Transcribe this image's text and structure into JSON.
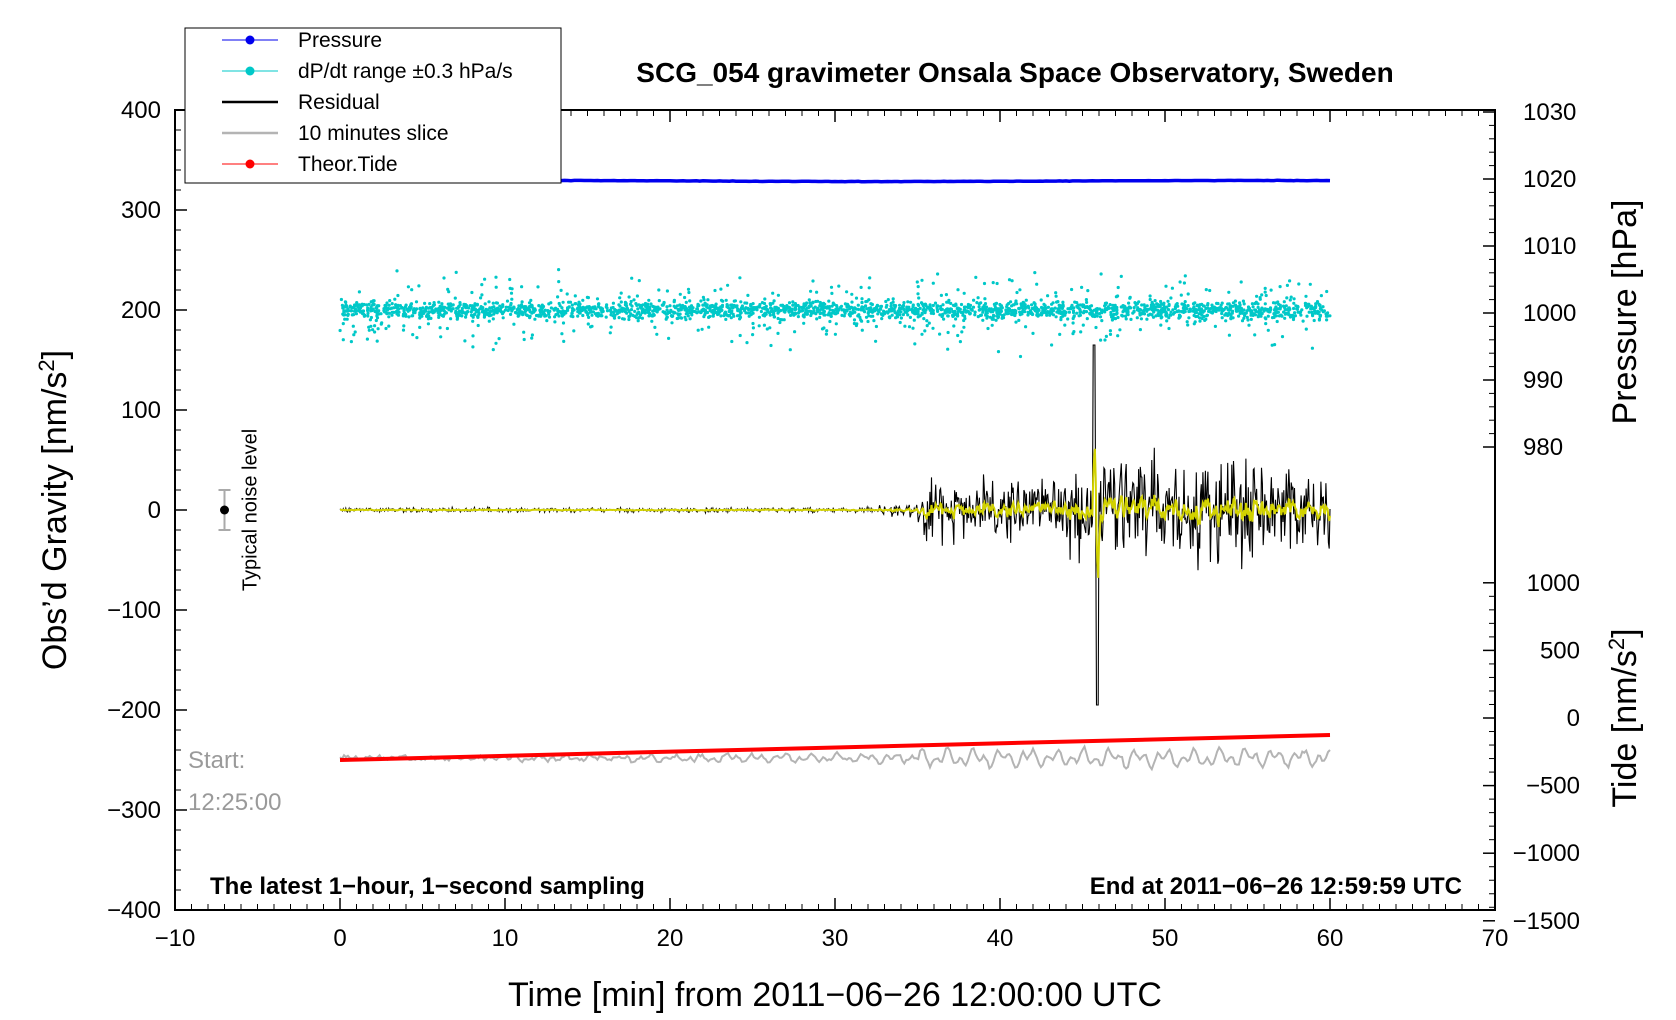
{
  "chart_data": {
    "type": "line",
    "title": "SCG_054 gravimeter Onsala Space Observatory, Sweden",
    "xlabel": "Time [min] from 2011−06−26 12:00:00 UTC",
    "ylabel": "Obs’d Gravity [nm/s²]",
    "ylabel_main": "Obs’d Gravity [nm/s",
    "ylabel_sup": "2",
    "ylabel_end": "]",
    "xlim": [
      -10,
      70
    ],
    "ylim": [
      -400,
      400
    ],
    "x_ticks": [
      -10,
      0,
      10,
      20,
      30,
      40,
      50,
      60,
      70
    ],
    "x_tick_labels": [
      "−10",
      "0",
      "10",
      "20",
      "30",
      "40",
      "50",
      "60",
      "70"
    ],
    "y_ticks": [
      -400,
      -300,
      -200,
      -100,
      0,
      100,
      200,
      300,
      400
    ],
    "y_tick_labels": [
      "−400",
      "−300",
      "−200",
      "−100",
      "0",
      "100",
      "200",
      "300",
      "400"
    ],
    "pressure_axis": {
      "label_main": "Pressure [hPa]",
      "ticks": [
        980,
        990,
        1000,
        1010,
        1020,
        1030
      ],
      "tick_labels": [
        "980",
        "990",
        "1000",
        "1010",
        "1020",
        "1030"
      ]
    },
    "tide_axis": {
      "label_main": "Tide [nm/s",
      "label_sup": "2",
      "label_end": "]",
      "ticks": [
        -1500,
        -1000,
        -500,
        0,
        500,
        1000
      ],
      "tick_labels": [
        "−1500",
        "−1000",
        "−500",
        "0",
        "500",
        "1000"
      ]
    },
    "legend": {
      "placement": "top-left",
      "entries": [
        {
          "label": "Pressure",
          "color": "#0000ee",
          "marker": "dot"
        },
        {
          "label": "dP/dt range ±0.3 hPa/s",
          "color": "#00c8c8",
          "marker": "dot"
        },
        {
          "label": "Residual",
          "color": "#000000",
          "marker": "line"
        },
        {
          "label": "10 minutes slice",
          "color": "#b4b4b4",
          "marker": "line"
        },
        {
          "label": "Theor.Tide",
          "color": "#ff0000",
          "marker": "dot"
        }
      ]
    },
    "series": [
      {
        "name": "Pressure",
        "unit": "hPa",
        "x_range": [
          0,
          60
        ],
        "values_approx": [
          1019.7,
          1019.7,
          1019.7
        ],
        "note": "nearly flat around 1019.7 hPa"
      },
      {
        "name": "dP/dt range ±0.3 hPa/s",
        "unit": "nm/s² (plot offset)",
        "x_range": [
          0,
          60
        ],
        "center": 200,
        "spread": 25
      },
      {
        "name": "Residual",
        "unit": "nm/s²",
        "x_range": [
          0,
          60
        ],
        "quiet_until_min": 31,
        "peak_max": 165,
        "peak_min": -195,
        "peak_time_min": 45.7
      },
      {
        "name": "10 minutes slice",
        "unit": "nm/s² (plot offset)",
        "x_range": [
          0,
          60
        ],
        "center": -248
      },
      {
        "name": "Theor.Tide",
        "unit": "nm/s² (plot offset)",
        "x": [
          0,
          60
        ],
        "values": [
          -250,
          -225
        ]
      }
    ],
    "annotations": {
      "noise_label": "Typical noise level",
      "noise_x": -7,
      "noise_y": 0,
      "noise_err": 20,
      "start_label": "Start:",
      "start_time": "12:25:00",
      "bottom_left": "The latest 1−hour, 1−second sampling",
      "bottom_right": "End at 2011−06−26 12:59:59 UTC"
    },
    "colors": {
      "pressure": "#0000ee",
      "dpdt": "#00c8c8",
      "residual": "#000000",
      "residual_smooth": "#d2d200",
      "slice": "#b4b4b4",
      "tide": "#ff0000"
    }
  }
}
